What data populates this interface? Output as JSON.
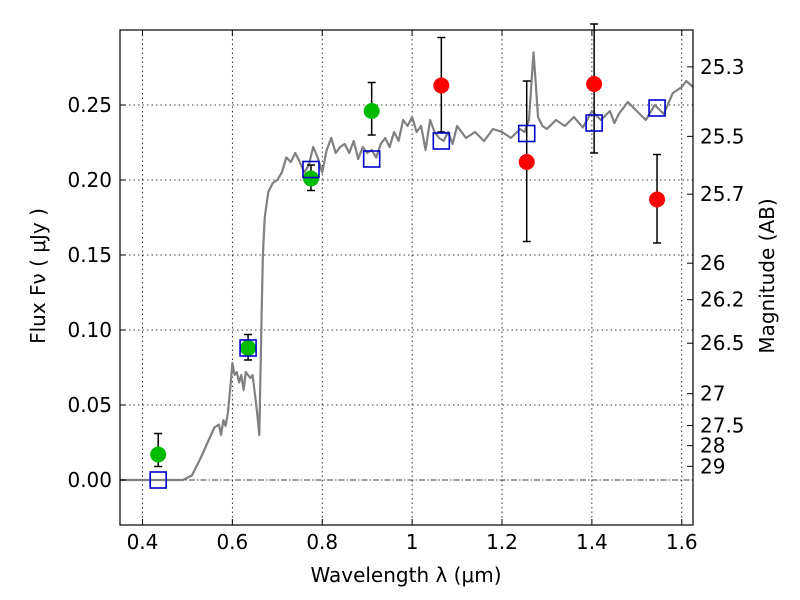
{
  "chart_data": {
    "type": "scatter",
    "xlabel": "Wavelength  λ (μm)",
    "ylabel": "Flux  Fν ( μJy )",
    "y2label": "Magnitude (AB)",
    "xlim": [
      0.35,
      1.625
    ],
    "ylim": [
      -0.03,
      0.3
    ],
    "grid": true,
    "x_ticks": [
      "0.4",
      "0.6",
      "0.8",
      "1",
      "1.2",
      "1.4",
      "1.6"
    ],
    "x_tick_values": [
      0.4,
      0.6,
      0.8,
      1.0,
      1.2,
      1.4,
      1.6
    ],
    "y_ticks": [
      "0.00",
      "0.05",
      "0.10",
      "0.15",
      "0.20",
      "0.25"
    ],
    "y_tick_values": [
      0.0,
      0.05,
      0.1,
      0.15,
      0.2,
      0.25
    ],
    "mag_ticks": [
      "25.3",
      "25.5",
      "25.7",
      "26",
      "26.2",
      "26.5",
      "27",
      "27.5",
      "28",
      "29"
    ],
    "mag_tick_values": [
      25.3,
      25.5,
      25.7,
      26.0,
      26.2,
      26.5,
      27.0,
      27.5,
      28.0,
      29.0
    ],
    "mag_zero_point": 23.9,
    "model_spectrum": {
      "color": "#808080",
      "x": [
        0.35,
        0.49,
        0.51,
        0.53,
        0.545,
        0.56,
        0.57,
        0.575,
        0.58,
        0.585,
        0.59,
        0.595,
        0.6,
        0.605,
        0.61,
        0.615,
        0.62,
        0.625,
        0.63,
        0.64,
        0.645,
        0.65,
        0.655,
        0.66,
        0.665,
        0.668,
        0.672,
        0.68,
        0.69,
        0.7,
        0.71,
        0.72,
        0.73,
        0.74,
        0.75,
        0.76,
        0.77,
        0.78,
        0.79,
        0.8,
        0.81,
        0.82,
        0.83,
        0.84,
        0.85,
        0.86,
        0.87,
        0.88,
        0.89,
        0.9,
        0.91,
        0.92,
        0.93,
        0.94,
        0.95,
        0.96,
        0.97,
        0.98,
        0.99,
        1.0,
        1.01,
        1.02,
        1.03,
        1.04,
        1.05,
        1.06,
        1.07,
        1.08,
        1.09,
        1.1,
        1.12,
        1.14,
        1.16,
        1.18,
        1.2,
        1.22,
        1.24,
        1.25,
        1.26,
        1.265,
        1.27,
        1.275,
        1.28,
        1.29,
        1.3,
        1.32,
        1.34,
        1.36,
        1.38,
        1.4,
        1.42,
        1.44,
        1.45,
        1.46,
        1.48,
        1.5,
        1.52,
        1.54,
        1.56,
        1.58,
        1.6,
        1.61,
        1.625
      ],
      "y": [
        0.0,
        0.0,
        0.003,
        0.015,
        0.025,
        0.035,
        0.037,
        0.03,
        0.04,
        0.036,
        0.045,
        0.06,
        0.078,
        0.07,
        0.072,
        0.065,
        0.07,
        0.06,
        0.072,
        0.068,
        0.07,
        0.058,
        0.045,
        0.03,
        0.11,
        0.15,
        0.175,
        0.192,
        0.198,
        0.2,
        0.205,
        0.215,
        0.212,
        0.218,
        0.212,
        0.205,
        0.21,
        0.222,
        0.215,
        0.205,
        0.22,
        0.228,
        0.218,
        0.222,
        0.224,
        0.218,
        0.226,
        0.214,
        0.222,
        0.218,
        0.22,
        0.215,
        0.224,
        0.228,
        0.222,
        0.232,
        0.226,
        0.24,
        0.236,
        0.242,
        0.232,
        0.236,
        0.22,
        0.24,
        0.232,
        0.228,
        0.226,
        0.232,
        0.224,
        0.236,
        0.228,
        0.232,
        0.226,
        0.234,
        0.232,
        0.228,
        0.234,
        0.232,
        0.24,
        0.262,
        0.285,
        0.265,
        0.242,
        0.236,
        0.234,
        0.24,
        0.236,
        0.242,
        0.235,
        0.246,
        0.24,
        0.246,
        0.238,
        0.244,
        0.252,
        0.246,
        0.24,
        0.25,
        0.244,
        0.258,
        0.262,
        0.266,
        0.262
      ]
    },
    "observed_green": {
      "color": "#00bb00",
      "points": [
        {
          "x": 0.435,
          "y": 0.017,
          "err_lo": 0.008,
          "err_hi": 0.014
        },
        {
          "x": 0.635,
          "y": 0.088,
          "err_lo": 0.008,
          "err_hi": 0.009
        },
        {
          "x": 0.775,
          "y": 0.201,
          "err_lo": 0.008,
          "err_hi": 0.009
        },
        {
          "x": 0.91,
          "y": 0.246,
          "err_lo": 0.016,
          "err_hi": 0.019
        }
      ]
    },
    "observed_red": {
      "color": "#ff0000",
      "points": [
        {
          "x": 1.065,
          "y": 0.263,
          "err_lo": 0.031,
          "err_hi": 0.032
        },
        {
          "x": 1.255,
          "y": 0.212,
          "err_lo": 0.053,
          "err_hi": 0.054
        },
        {
          "x": 1.405,
          "y": 0.264,
          "err_lo": 0.046,
          "err_hi": 0.04
        },
        {
          "x": 1.545,
          "y": 0.187,
          "err_lo": 0.029,
          "err_hi": 0.03
        }
      ]
    },
    "model_photometry": {
      "color": "#0000cc",
      "points": [
        {
          "x": 0.435,
          "y": 0.0
        },
        {
          "x": 0.635,
          "y": 0.088
        },
        {
          "x": 0.775,
          "y": 0.207
        },
        {
          "x": 0.91,
          "y": 0.214
        },
        {
          "x": 1.065,
          "y": 0.226
        },
        {
          "x": 1.255,
          "y": 0.231
        },
        {
          "x": 1.405,
          "y": 0.238
        },
        {
          "x": 1.545,
          "y": 0.248
        }
      ]
    }
  }
}
